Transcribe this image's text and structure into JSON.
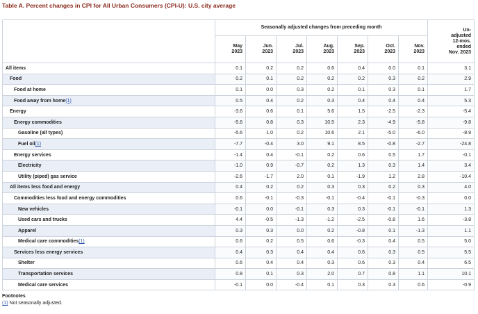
{
  "title": "Table A. Percent changes in CPI for All Urban Consumers (CPI-U): U.S. city average",
  "table": {
    "group_header": "Seasonally adjusted changes from preceding month",
    "columns": [
      "May\n2023",
      "Jun.\n2023",
      "Jul.\n2023",
      "Aug.\n2023",
      "Sep.\n2023",
      "Oct.\n2023",
      "Nov.\n2023"
    ],
    "last_column": "Un-\nadjusted\n12-mos.\nended\nNov. 2023",
    "rows": [
      {
        "label": "All items",
        "indent": 0,
        "values": [
          "0.1",
          "0.2",
          "0.2",
          "0.6",
          "0.4",
          "0.0",
          "0.1",
          "3.1"
        ]
      },
      {
        "label": "Food",
        "indent": 1,
        "values": [
          "0.2",
          "0.1",
          "0.2",
          "0.2",
          "0.2",
          "0.3",
          "0.2",
          "2.9"
        ]
      },
      {
        "label": "Food at home",
        "indent": 2,
        "values": [
          "0.1",
          "0.0",
          "0.3",
          "0.2",
          "0.1",
          "0.3",
          "0.1",
          "1.7"
        ]
      },
      {
        "label": "Food away from home",
        "footnote": "(1)",
        "indent": 2,
        "values": [
          "0.5",
          "0.4",
          "0.2",
          "0.3",
          "0.4",
          "0.4",
          "0.4",
          "5.3"
        ]
      },
      {
        "label": "Energy",
        "indent": 1,
        "values": [
          "-3.6",
          "0.6",
          "0.1",
          "5.6",
          "1.5",
          "-2.5",
          "-2.3",
          "-5.4"
        ]
      },
      {
        "label": "Energy commodities",
        "indent": 2,
        "values": [
          "-5.6",
          "0.8",
          "0.3",
          "10.5",
          "2.3",
          "-4.9",
          "-5.8",
          "-9.8"
        ]
      },
      {
        "label": "Gasoline (all types)",
        "indent": 3,
        "values": [
          "-5.6",
          "1.0",
          "0.2",
          "10.6",
          "2.1",
          "-5.0",
          "-6.0",
          "-8.9"
        ]
      },
      {
        "label": "Fuel oil",
        "footnote": "(1)",
        "indent": 3,
        "values": [
          "-7.7",
          "-0.4",
          "3.0",
          "9.1",
          "8.5",
          "-0.8",
          "-2.7",
          "-24.8"
        ]
      },
      {
        "label": "Energy services",
        "indent": 2,
        "values": [
          "-1.4",
          "0.4",
          "-0.1",
          "0.2",
          "0.6",
          "0.5",
          "1.7",
          "-0.1"
        ]
      },
      {
        "label": "Electricity",
        "indent": 3,
        "values": [
          "-1.0",
          "0.9",
          "-0.7",
          "0.2",
          "1.3",
          "0.3",
          "1.4",
          "3.4"
        ]
      },
      {
        "label": "Utility (piped) gas service",
        "indent": 3,
        "values": [
          "-2.6",
          "-1.7",
          "2.0",
          "0.1",
          "-1.9",
          "1.2",
          "2.8",
          "-10.4"
        ]
      },
      {
        "label": "All items less food and energy",
        "indent": 1,
        "values": [
          "0.4",
          "0.2",
          "0.2",
          "0.3",
          "0.3",
          "0.2",
          "0.3",
          "4.0"
        ]
      },
      {
        "label": "Commodities less food and energy commodities",
        "indent": 2,
        "values": [
          "0.6",
          "-0.1",
          "-0.3",
          "-0.1",
          "-0.4",
          "-0.1",
          "-0.3",
          "0.0"
        ]
      },
      {
        "label": "New vehicles",
        "indent": 3,
        "values": [
          "-0.1",
          "0.0",
          "-0.1",
          "0.3",
          "0.3",
          "-0.1",
          "-0.1",
          "1.3"
        ]
      },
      {
        "label": "Used cars and trucks",
        "indent": 3,
        "values": [
          "4.4",
          "-0.5",
          "-1.3",
          "-1.2",
          "-2.5",
          "-0.8",
          "1.6",
          "-3.8"
        ]
      },
      {
        "label": "Apparel",
        "indent": 3,
        "values": [
          "0.3",
          "0.3",
          "0.0",
          "0.2",
          "-0.8",
          "0.1",
          "-1.3",
          "1.1"
        ]
      },
      {
        "label": "Medical care commodities",
        "footnote": "(1)",
        "indent": 3,
        "values": [
          "0.6",
          "0.2",
          "0.5",
          "0.6",
          "-0.3",
          "0.4",
          "0.5",
          "5.0"
        ]
      },
      {
        "label": "Services less energy services",
        "indent": 2,
        "values": [
          "0.4",
          "0.3",
          "0.4",
          "0.4",
          "0.6",
          "0.3",
          "0.5",
          "5.5"
        ]
      },
      {
        "label": "Shelter",
        "indent": 3,
        "values": [
          "0.6",
          "0.4",
          "0.4",
          "0.3",
          "0.6",
          "0.3",
          "0.4",
          "6.5"
        ]
      },
      {
        "label": "Transportation services",
        "indent": 3,
        "values": [
          "0.8",
          "0.1",
          "0.3",
          "2.0",
          "0.7",
          "0.8",
          "1.1",
          "10.1"
        ]
      },
      {
        "label": "Medical care services",
        "indent": 3,
        "values": [
          "-0.1",
          "0.0",
          "-0.4",
          "0.1",
          "0.3",
          "0.3",
          "0.6",
          "-0.9"
        ]
      }
    ]
  },
  "footnotes": {
    "title": "Footnotes",
    "items": [
      {
        "marker": "(1)",
        "text": "Not seasonally adjusted."
      }
    ]
  }
}
